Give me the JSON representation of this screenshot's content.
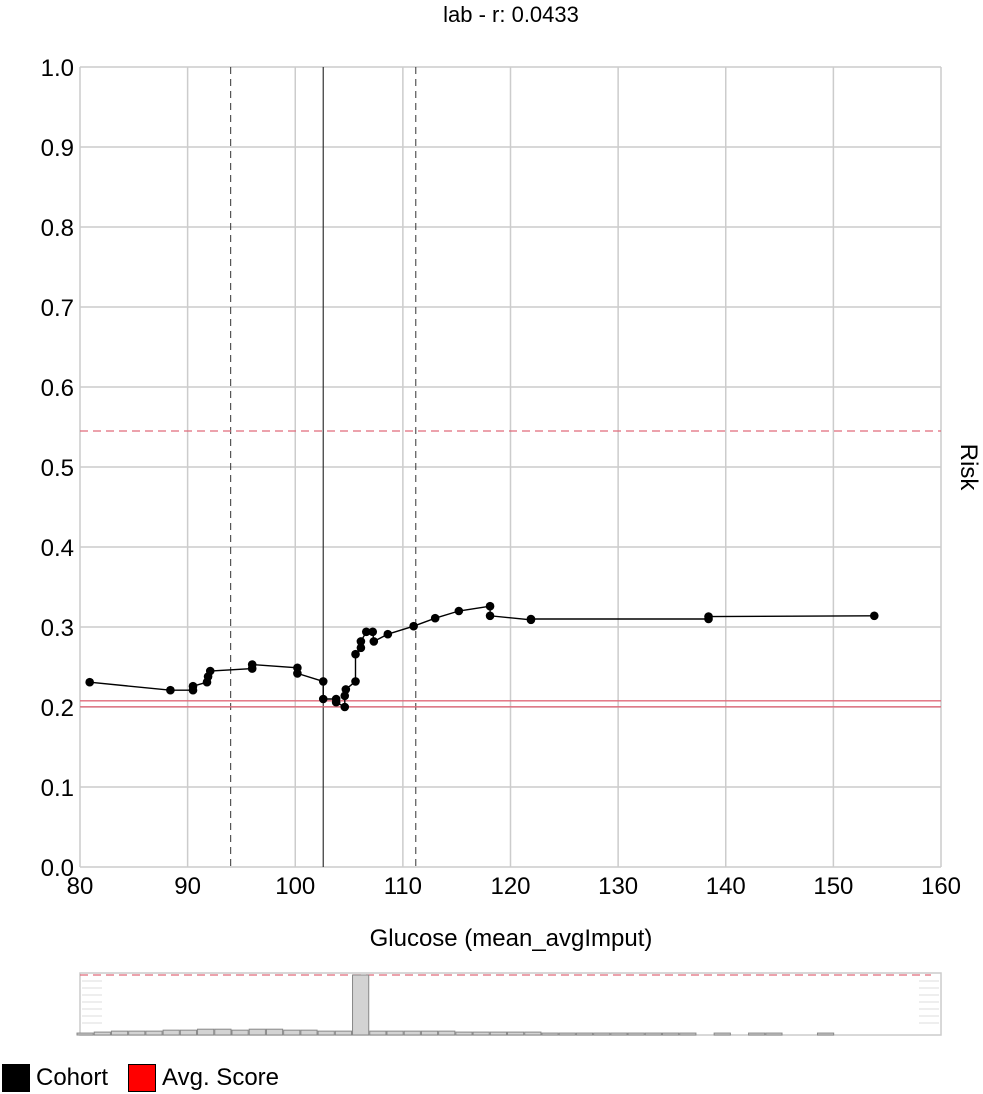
{
  "chart_data": {
    "type": "line",
    "title": "lab - r: 0.0433",
    "xlabel": "Glucose (mean_avgImput)",
    "ylabel": "Risk",
    "xlim": [
      80,
      160
    ],
    "ylim": [
      0.0,
      1.0
    ],
    "x_ticks": [
      "80",
      "90",
      "100",
      "110",
      "120",
      "130",
      "140",
      "150",
      "160"
    ],
    "y_ticks": [
      "0.0",
      "0.1",
      "0.2",
      "0.3",
      "0.4",
      "0.5",
      "0.6",
      "0.7",
      "0.8",
      "0.9",
      "1.0"
    ],
    "grid": true,
    "series": [
      {
        "name": "Cohort",
        "color": "#000000",
        "x": [
          80.9,
          88.4,
          90.5,
          90.5,
          91.8,
          91.9,
          92.1,
          96.0,
          96.0,
          100.2,
          100.2,
          102.6,
          102.6,
          103.8,
          103.8,
          104.6,
          104.6,
          104.7,
          105.6,
          105.6,
          106.1,
          106.1,
          106.6,
          107.2,
          107.3,
          108.6,
          111.0,
          113.0,
          115.2,
          118.1,
          118.1,
          121.9,
          121.9,
          138.4,
          138.4,
          153.8
        ],
        "y": [
          0.231,
          0.221,
          0.221,
          0.226,
          0.231,
          0.238,
          0.245,
          0.248,
          0.253,
          0.249,
          0.242,
          0.232,
          0.21,
          0.21,
          0.206,
          0.2,
          0.214,
          0.222,
          0.232,
          0.266,
          0.274,
          0.282,
          0.294,
          0.294,
          0.282,
          0.291,
          0.301,
          0.311,
          0.32,
          0.326,
          0.314,
          0.309,
          0.31,
          0.31,
          0.313,
          0.314
        ]
      }
    ],
    "reference_lines": {
      "cohort_mean_x": 102.6,
      "cohort_std_low_x": 94.0,
      "cohort_std_high_x": 111.2,
      "avg_score_y": 0.204,
      "avg_score_upper_y": 0.545
    },
    "histogram": {
      "bin_counts": [
        2,
        3,
        4,
        4,
        4,
        5,
        5,
        6,
        6,
        5,
        6,
        6,
        5,
        5,
        4,
        4,
        62,
        4,
        4,
        4,
        4,
        4,
        3,
        3,
        3,
        3,
        3,
        2,
        2,
        2,
        2,
        2,
        2,
        2,
        2,
        2,
        0,
        2,
        0,
        2,
        2,
        0,
        0,
        2,
        0
      ],
      "max_line": 62
    },
    "legend": [
      {
        "label": "Cohort",
        "color": "#000000"
      },
      {
        "label": "Avg. Score",
        "color": "#ff0000"
      }
    ],
    "legend_position": "bottom-left"
  }
}
